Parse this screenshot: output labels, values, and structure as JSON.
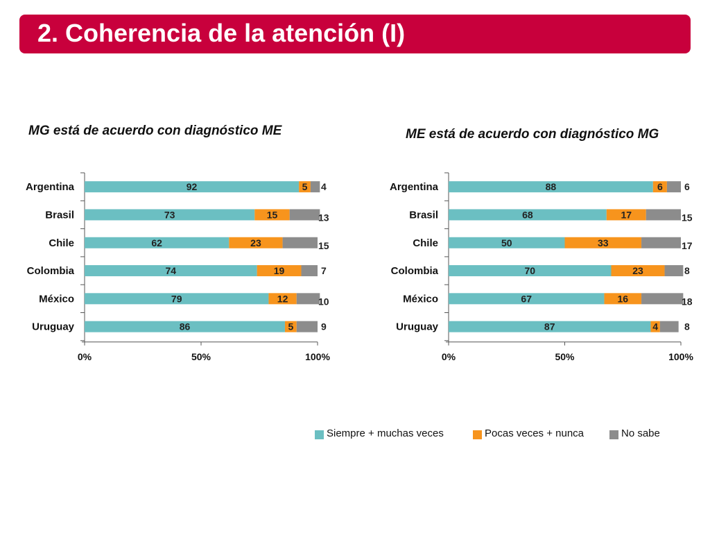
{
  "header": {
    "title": "2. Coherencia de la atención (I)",
    "bg_color": "#c8003c"
  },
  "colors": {
    "siempre": "#6bbfc2",
    "pocas": "#f7941d",
    "no_sabe": "#8c8c8c"
  },
  "legend": {
    "items": [
      {
        "label": "Siempre + muchas veces",
        "color": "#6bbfc2"
      },
      {
        "label": "Pocas veces + nunca",
        "color": "#f7941d"
      },
      {
        "label": "No sabe",
        "color": "#8c8c8c"
      }
    ]
  },
  "chart_data": [
    {
      "type": "bar",
      "orientation": "horizontal",
      "stacked": true,
      "title": "MG está de acuerdo con diagnóstico ME",
      "categories": [
        "Argentina",
        "Brasil",
        "Chile",
        "Colombia",
        "México",
        "Uruguay"
      ],
      "series": [
        {
          "name": "Siempre + muchas veces",
          "values": [
            92,
            73,
            62,
            74,
            79,
            86
          ]
        },
        {
          "name": "Pocas veces + nunca",
          "values": [
            5,
            15,
            23,
            19,
            12,
            5
          ]
        },
        {
          "name": "No sabe",
          "values": [
            4,
            13,
            15,
            7,
            10,
            9
          ]
        }
      ],
      "xlim": [
        0,
        100
      ],
      "x_ticks": [
        "0%",
        "50%",
        "100%"
      ],
      "xlabel": "",
      "ylabel": "",
      "grid": false
    },
    {
      "type": "bar",
      "orientation": "horizontal",
      "stacked": true,
      "title": "ME está de acuerdo con diagnóstico MG",
      "categories": [
        "Argentina",
        "Brasil",
        "Chile",
        "Colombia",
        "México",
        "Uruguay"
      ],
      "series": [
        {
          "name": "Siempre + muchas veces",
          "values": [
            88,
            68,
            50,
            70,
            67,
            87
          ]
        },
        {
          "name": "Pocas veces + nunca",
          "values": [
            6,
            17,
            33,
            23,
            16,
            4
          ]
        },
        {
          "name": "No sabe",
          "values": [
            6,
            15,
            17,
            8,
            18,
            8
          ]
        }
      ],
      "xlim": [
        0,
        100
      ],
      "x_ticks": [
        "0%",
        "50%",
        "100%"
      ],
      "xlabel": "",
      "ylabel": "",
      "grid": false
    }
  ]
}
